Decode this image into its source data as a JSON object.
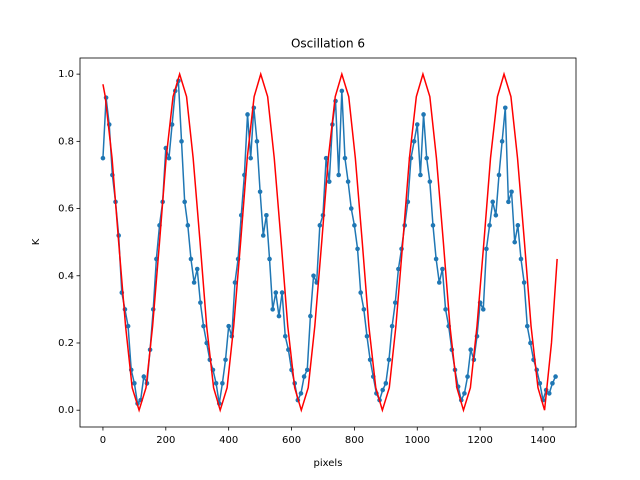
{
  "chart_data": {
    "type": "line",
    "title": "Oscillation 6",
    "x_label": "pixels",
    "y_label": "K",
    "xlim": [
      -73,
      1505
    ],
    "ylim": [
      -0.05,
      1.048
    ],
    "xticks": [
      0,
      200,
      400,
      600,
      800,
      1000,
      1200,
      1400
    ],
    "yticks": [
      {
        "value": 0,
        "label": "0.0"
      },
      0.2,
      0.4,
      0.6,
      0.8,
      {
        "value": 1,
        "label": "1.0"
      }
    ],
    "series": [
      {
        "color": "#1f77b4",
        "marker": "o",
        "x": [
          0,
          10,
          20,
          30,
          40,
          50,
          60,
          70,
          80,
          90,
          100,
          110,
          120,
          130,
          140,
          150,
          160,
          170,
          180,
          190,
          200,
          210,
          220,
          230,
          240,
          250,
          260,
          270,
          280,
          290,
          300,
          310,
          320,
          330,
          340,
          350,
          360,
          370,
          380,
          390,
          400,
          410,
          420,
          430,
          440,
          450,
          460,
          470,
          480,
          490,
          500,
          510,
          520,
          530,
          540,
          550,
          560,
          570,
          580,
          590,
          600,
          610,
          620,
          630,
          640,
          650,
          660,
          670,
          680,
          690,
          700,
          710,
          720,
          730,
          740,
          750,
          760,
          770,
          780,
          790,
          800,
          810,
          820,
          830,
          840,
          850,
          860,
          870,
          880,
          890,
          900,
          910,
          920,
          930,
          940,
          950,
          960,
          970,
          980,
          990,
          1000,
          1010,
          1020,
          1030,
          1040,
          1050,
          1060,
          1070,
          1080,
          1090,
          1100,
          1110,
          1120,
          1130,
          1140,
          1150,
          1160,
          1170,
          1180,
          1190,
          1200,
          1210,
          1220,
          1230,
          1240,
          1250,
          1260,
          1270,
          1280,
          1290,
          1300,
          1310,
          1320,
          1330,
          1340,
          1350,
          1360,
          1370,
          1380,
          1390,
          1400,
          1410,
          1420,
          1430,
          1440
        ],
        "values": [
          0.75,
          0.93,
          0.85,
          0.7,
          0.62,
          0.52,
          0.35,
          0.3,
          0.25,
          0.12,
          0.08,
          0.02,
          0.03,
          0.1,
          0.08,
          0.18,
          0.3,
          0.45,
          0.55,
          0.62,
          0.78,
          0.75,
          0.85,
          0.95,
          0.98,
          0.8,
          0.62,
          0.55,
          0.45,
          0.38,
          0.42,
          0.32,
          0.25,
          0.2,
          0.15,
          0.12,
          0.08,
          0.02,
          0.08,
          0.15,
          0.25,
          0.22,
          0.38,
          0.45,
          0.58,
          0.7,
          0.88,
          0.75,
          0.9,
          0.8,
          0.65,
          0.52,
          0.58,
          0.45,
          0.3,
          0.35,
          0.28,
          0.35,
          0.22,
          0.18,
          0.12,
          0.08,
          0.03,
          0.05,
          0.1,
          0.12,
          0.28,
          0.4,
          0.38,
          0.55,
          0.58,
          0.75,
          0.68,
          0.85,
          0.92,
          0.7,
          0.95,
          0.75,
          0.68,
          0.6,
          0.55,
          0.48,
          0.35,
          0.3,
          0.22,
          0.15,
          0.1,
          0.05,
          0.03,
          0.06,
          0.08,
          0.15,
          0.25,
          0.32,
          0.42,
          0.48,
          0.55,
          0.62,
          0.75,
          0.8,
          0.85,
          0.7,
          0.88,
          0.75,
          0.68,
          0.55,
          0.45,
          0.38,
          0.42,
          0.3,
          0.25,
          0.18,
          0.12,
          0.07,
          0.03,
          0.05,
          0.1,
          0.18,
          0.15,
          0.22,
          0.32,
          0.3,
          0.48,
          0.55,
          0.62,
          0.58,
          0.7,
          0.8,
          0.9,
          0.62,
          0.65,
          0.5,
          0.55,
          0.45,
          0.38,
          0.25,
          0.2,
          0.15,
          0.12,
          0.08,
          0.03,
          0.06,
          0.05,
          0.08,
          0.1
        ]
      },
      {
        "color": "#ff0000",
        "x": [
          0,
          7,
          29,
          50,
          72,
          93,
          115,
          137,
          158,
          180,
          201,
          223,
          244,
          266,
          287,
          309,
          330,
          352,
          373,
          395,
          416,
          438,
          459,
          481,
          502,
          524,
          545,
          567,
          588,
          610,
          631,
          653,
          674,
          696,
          717,
          739,
          760,
          782,
          803,
          825,
          846,
          868,
          889,
          911,
          932,
          954,
          975,
          997,
          1018,
          1040,
          1061,
          1083,
          1104,
          1126,
          1147,
          1169,
          1190,
          1212,
          1233,
          1255,
          1276,
          1298,
          1319,
          1341,
          1362,
          1384,
          1405,
          1427,
          1445
        ],
        "values": [
          0.97,
          0.935,
          0.75,
          0.5,
          0.25,
          0.067,
          0,
          0.067,
          0.25,
          0.5,
          0.75,
          0.933,
          1,
          0.933,
          0.75,
          0.5,
          0.25,
          0.067,
          0,
          0.067,
          0.25,
          0.5,
          0.75,
          0.933,
          1,
          0.933,
          0.75,
          0.5,
          0.25,
          0.067,
          0,
          0.067,
          0.25,
          0.5,
          0.75,
          0.933,
          1,
          0.933,
          0.75,
          0.5,
          0.25,
          0.067,
          0,
          0.067,
          0.25,
          0.5,
          0.75,
          0.933,
          1,
          0.933,
          0.75,
          0.5,
          0.25,
          0.067,
          0,
          0.067,
          0.25,
          0.5,
          0.75,
          0.933,
          1,
          0.933,
          0.75,
          0.5,
          0.25,
          0.067,
          0,
          0.2,
          0.45
        ]
      }
    ]
  }
}
